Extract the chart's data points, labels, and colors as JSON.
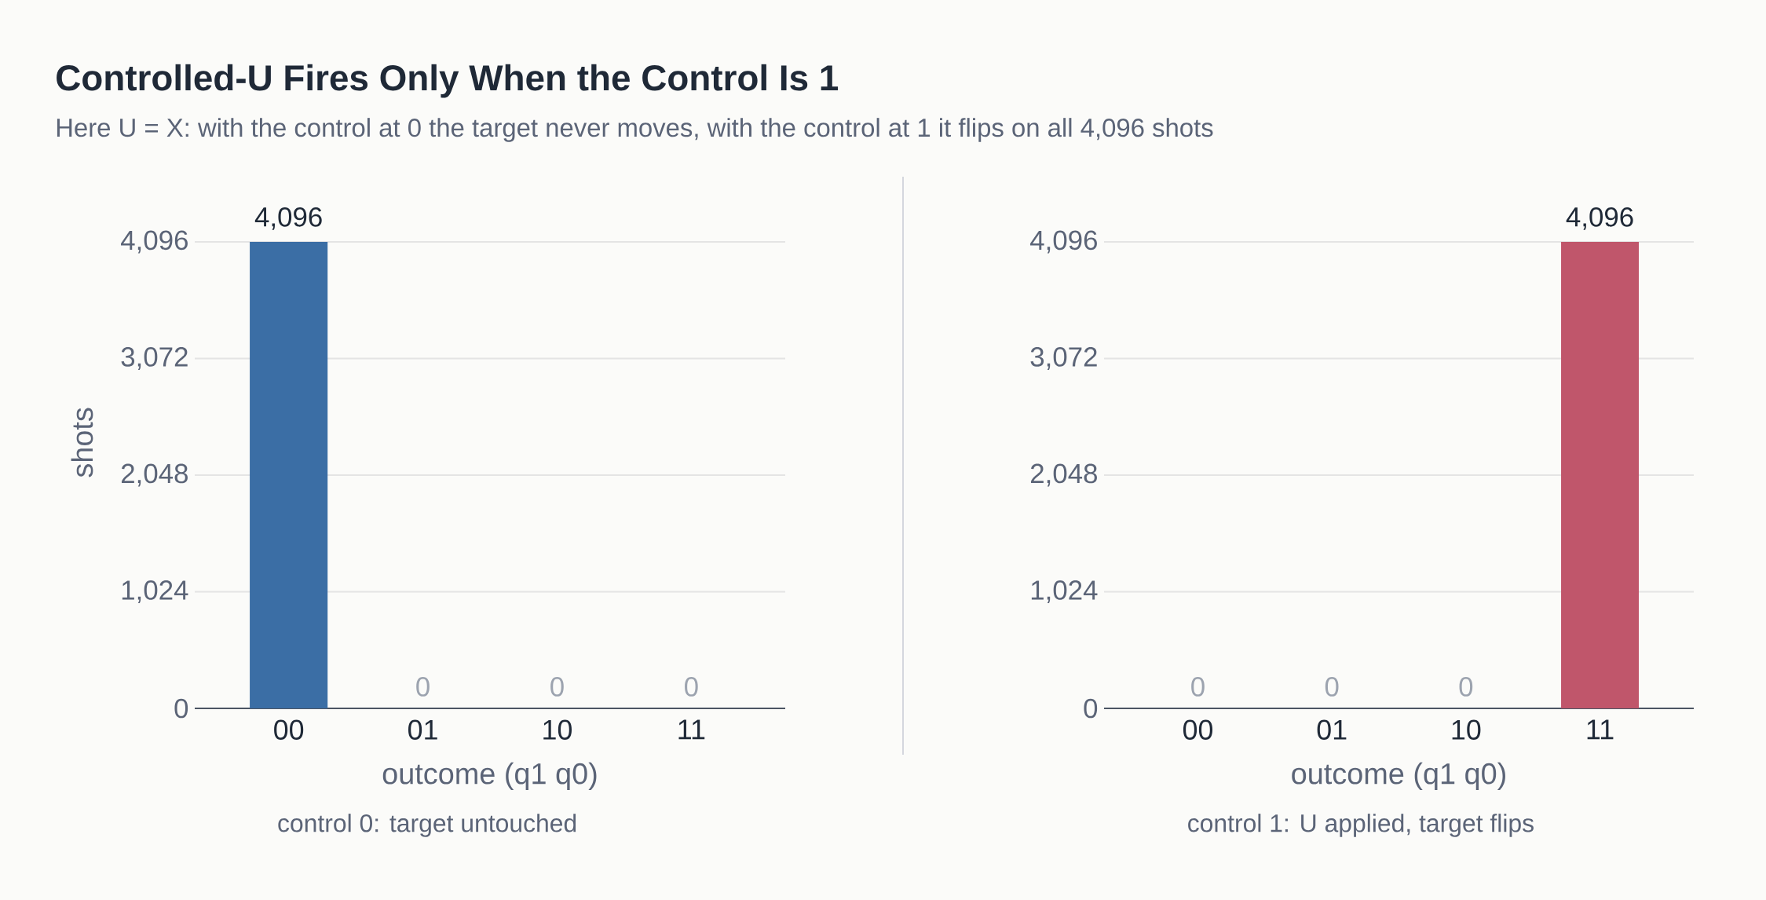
{
  "chart_data": [
    {
      "type": "bar",
      "title": "Controlled-U Fires Only When the Control Is 1",
      "subtitle": "Here U = X: with the control at 0 the target never moves, with the control at 1 it flips on all 4,096 shots",
      "xlabel": "outcome (q1 q0)",
      "ylabel": "shots",
      "categories": [
        "00",
        "01",
        "10",
        "11"
      ],
      "values": [
        4096,
        0,
        0,
        0
      ],
      "color": "#3b6ea5",
      "value_labels": [
        "4,096",
        "0",
        "0",
        "0"
      ],
      "ylim": [
        0,
        4096
      ],
      "yticks": [
        0,
        {
          "value": 1024,
          "label": "1,024"
        },
        {
          "value": 2048,
          "label": "2,048"
        },
        {
          "value": 3072,
          "label": "3,072"
        },
        {
          "value": 4096,
          "label": "4,096"
        }
      ],
      "grid": "y",
      "annotations": [
        "control 0: target untouched"
      ]
    },
    {
      "type": "bar",
      "xlabel": "outcome (q1 q0)",
      "categories": [
        "00",
        "01",
        "10",
        "11"
      ],
      "values": [
        0,
        0,
        0,
        4096
      ],
      "color": "#c0566b",
      "value_labels": [
        "0",
        "0",
        "0",
        "4,096"
      ],
      "ylim": [
        0,
        4096
      ],
      "yticks": [
        0,
        {
          "value": 1024,
          "label": "1,024"
        },
        {
          "value": 2048,
          "label": "2,048"
        },
        {
          "value": 3072,
          "label": "3,072"
        },
        {
          "value": 4096,
          "label": "4,096"
        }
      ],
      "grid": "y",
      "annotations": [
        "control 1: U applied, target flips"
      ]
    }
  ]
}
